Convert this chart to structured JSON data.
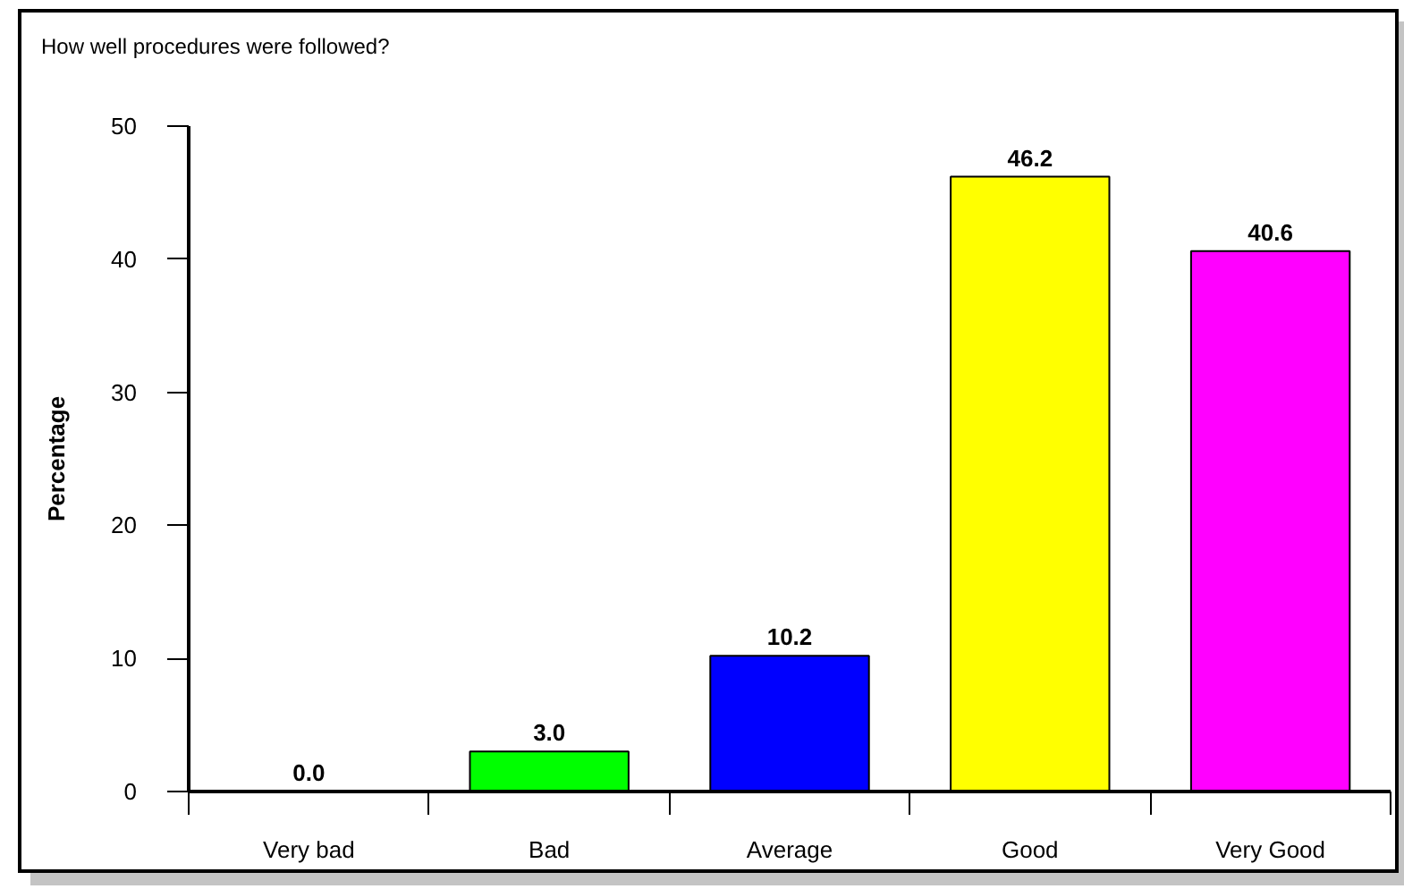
{
  "chart_data": {
    "type": "bar",
    "title": "How well procedures were followed?",
    "ylabel": "Percentage",
    "categories": [
      "Very bad",
      "Bad",
      "Average",
      "Good",
      "Very Good"
    ],
    "values": [
      0.0,
      3.0,
      10.2,
      46.2,
      40.6
    ],
    "colors": [
      "#000000",
      "#00ff00",
      "#0000ff",
      "#ffff00",
      "#ff00ff"
    ],
    "value_labels": [
      "0.0",
      "3.0",
      "10.2",
      "46.2",
      "40.6"
    ],
    "ylim": [
      0,
      50
    ],
    "yticks": [
      0,
      10,
      20,
      30,
      40,
      50
    ]
  }
}
